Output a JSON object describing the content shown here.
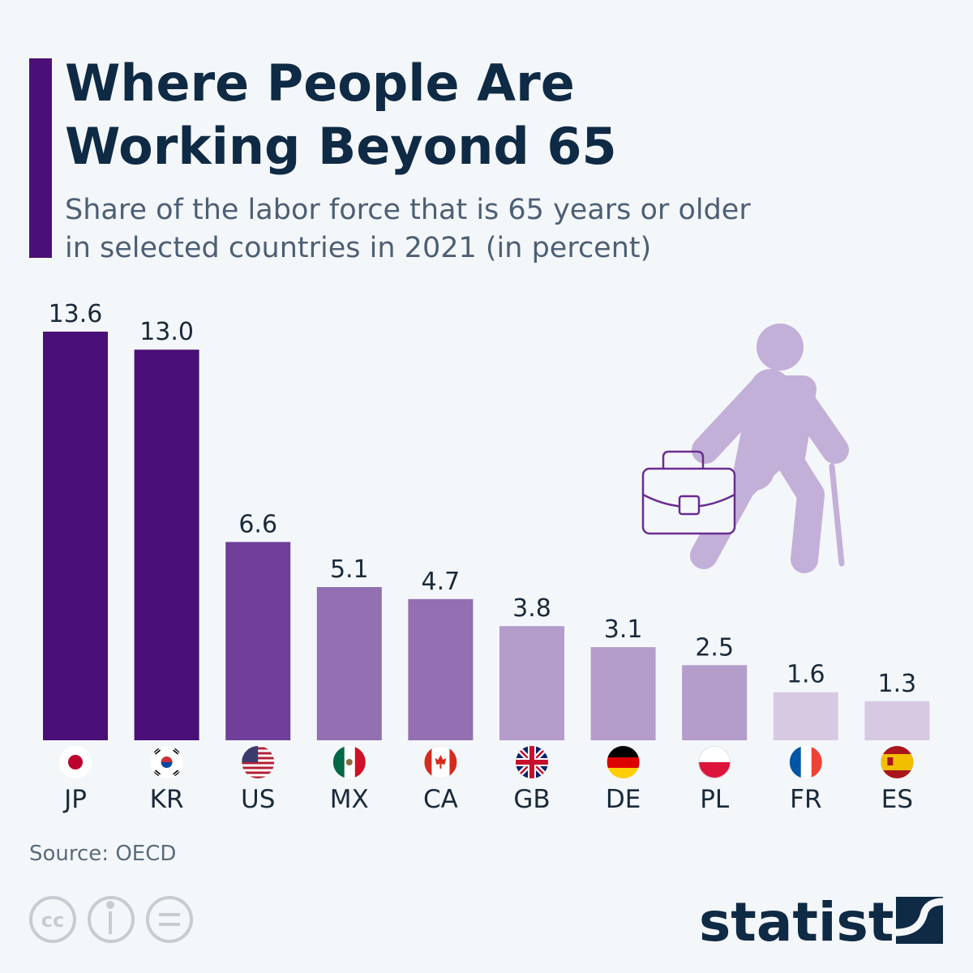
{
  "chart_data": {
    "type": "bar",
    "title": [
      "Where People Are",
      "Working Beyond 65"
    ],
    "subtitle": [
      "Share of the labor force that is 65 years or older",
      "in selected countries in 2021 (in percent)"
    ],
    "categories": [
      "JP",
      "KR",
      "US",
      "MX",
      "CA",
      "GB",
      "DE",
      "PL",
      "FR",
      "ES"
    ],
    "values": [
      13.6,
      13.0,
      6.6,
      5.1,
      4.7,
      3.8,
      3.1,
      2.5,
      1.6,
      1.3
    ],
    "value_labels": [
      "13.6",
      "13.0",
      "6.6",
      "5.1",
      "4.7",
      "3.8",
      "3.1",
      "2.5",
      "1.6",
      "1.3"
    ],
    "colors": [
      "#4a1077",
      "#4a1077",
      "#6f3f99",
      "#9370b2",
      "#9370b2",
      "#b49ccb",
      "#b49ccb",
      "#b49ccb",
      "#d8c9e3",
      "#d8c9e3"
    ],
    "source": "Source: OECD",
    "brand": "statista"
  }
}
